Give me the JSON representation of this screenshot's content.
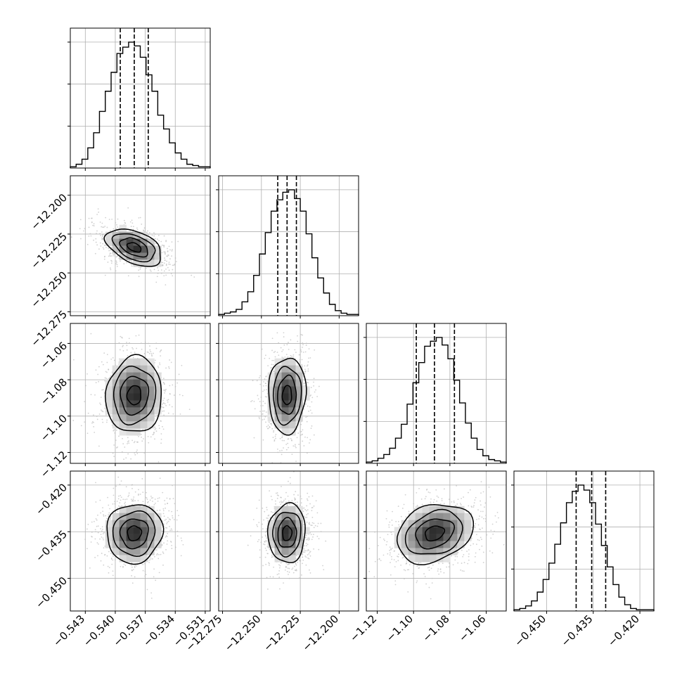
{
  "chart_data": {
    "type": "corner",
    "grid": true,
    "parameters": [
      {
        "range": [
          -0.5445,
          -0.5305
        ],
        "ticks": [
          -0.543,
          -0.54,
          -0.537,
          -0.534,
          -0.531
        ],
        "tick_labels": [
          "−0.543",
          "−0.540",
          "−0.537",
          "−0.534",
          "−0.531"
        ],
        "quantiles": [
          -0.5395,
          -0.5381,
          -0.5367
        ],
        "hist": [
          0.01,
          0.03,
          0.07,
          0.16,
          0.28,
          0.45,
          0.61,
          0.76,
          0.91,
          0.96,
          1.0,
          0.97,
          0.88,
          0.74,
          0.61,
          0.42,
          0.31,
          0.2,
          0.12,
          0.07,
          0.03,
          0.02,
          0.01,
          0.01
        ]
      },
      {
        "range": [
          -12.2775,
          -12.1875
        ],
        "ticks": [
          -12.275,
          -12.25,
          -12.225,
          -12.2
        ],
        "tick_labels": [
          "−12.275",
          "−12.250",
          "−12.225",
          "−12.200"
        ],
        "quantiles": [
          -12.2395,
          -12.2335,
          -12.2275
        ],
        "hist": [
          0.01,
          0.02,
          0.03,
          0.05,
          0.11,
          0.19,
          0.32,
          0.49,
          0.66,
          0.83,
          0.92,
          0.98,
          1.0,
          0.93,
          0.83,
          0.65,
          0.46,
          0.3,
          0.18,
          0.09,
          0.04,
          0.02,
          0.01,
          0.01
        ]
      },
      {
        "range": [
          -1.126,
          -1.049
        ],
        "ticks": [
          -1.12,
          -1.1,
          -1.08,
          -1.06
        ],
        "tick_labels": [
          "−1.12",
          "−1.10",
          "−1.08",
          "−1.06"
        ],
        "quantiles": [
          -1.0985,
          -1.0885,
          -1.0775
        ],
        "hist": [
          0.01,
          0.02,
          0.04,
          0.07,
          0.12,
          0.2,
          0.31,
          0.47,
          0.64,
          0.8,
          0.93,
          0.97,
          1.0,
          0.94,
          0.83,
          0.66,
          0.48,
          0.32,
          0.2,
          0.11,
          0.06,
          0.03,
          0.02,
          0.01
        ]
      },
      {
        "range": [
          -0.4605,
          -0.4155
        ],
        "ticks": [
          -0.45,
          -0.435,
          -0.42
        ],
        "tick_labels": [
          "−0.450",
          "−0.435",
          "−0.420"
        ],
        "quantiles": [
          -0.4405,
          -0.4355,
          -0.431
        ],
        "hist": [
          0.01,
          0.02,
          0.04,
          0.08,
          0.15,
          0.25,
          0.38,
          0.53,
          0.7,
          0.86,
          0.95,
          1.0,
          0.96,
          0.86,
          0.69,
          0.52,
          0.35,
          0.21,
          0.11,
          0.05,
          0.02,
          0.01,
          0.01,
          0.01
        ]
      }
    ],
    "correlations": [
      [
        1,
        -0.45,
        0.05,
        0.05
      ],
      [
        -0.45,
        1,
        0.05,
        0.05
      ],
      [
        0.05,
        0.05,
        1,
        0.25
      ],
      [
        0.05,
        0.05,
        0.25,
        1
      ]
    ],
    "contour_levels": [
      0.5,
      1.0,
      1.5,
      2.0
    ]
  }
}
